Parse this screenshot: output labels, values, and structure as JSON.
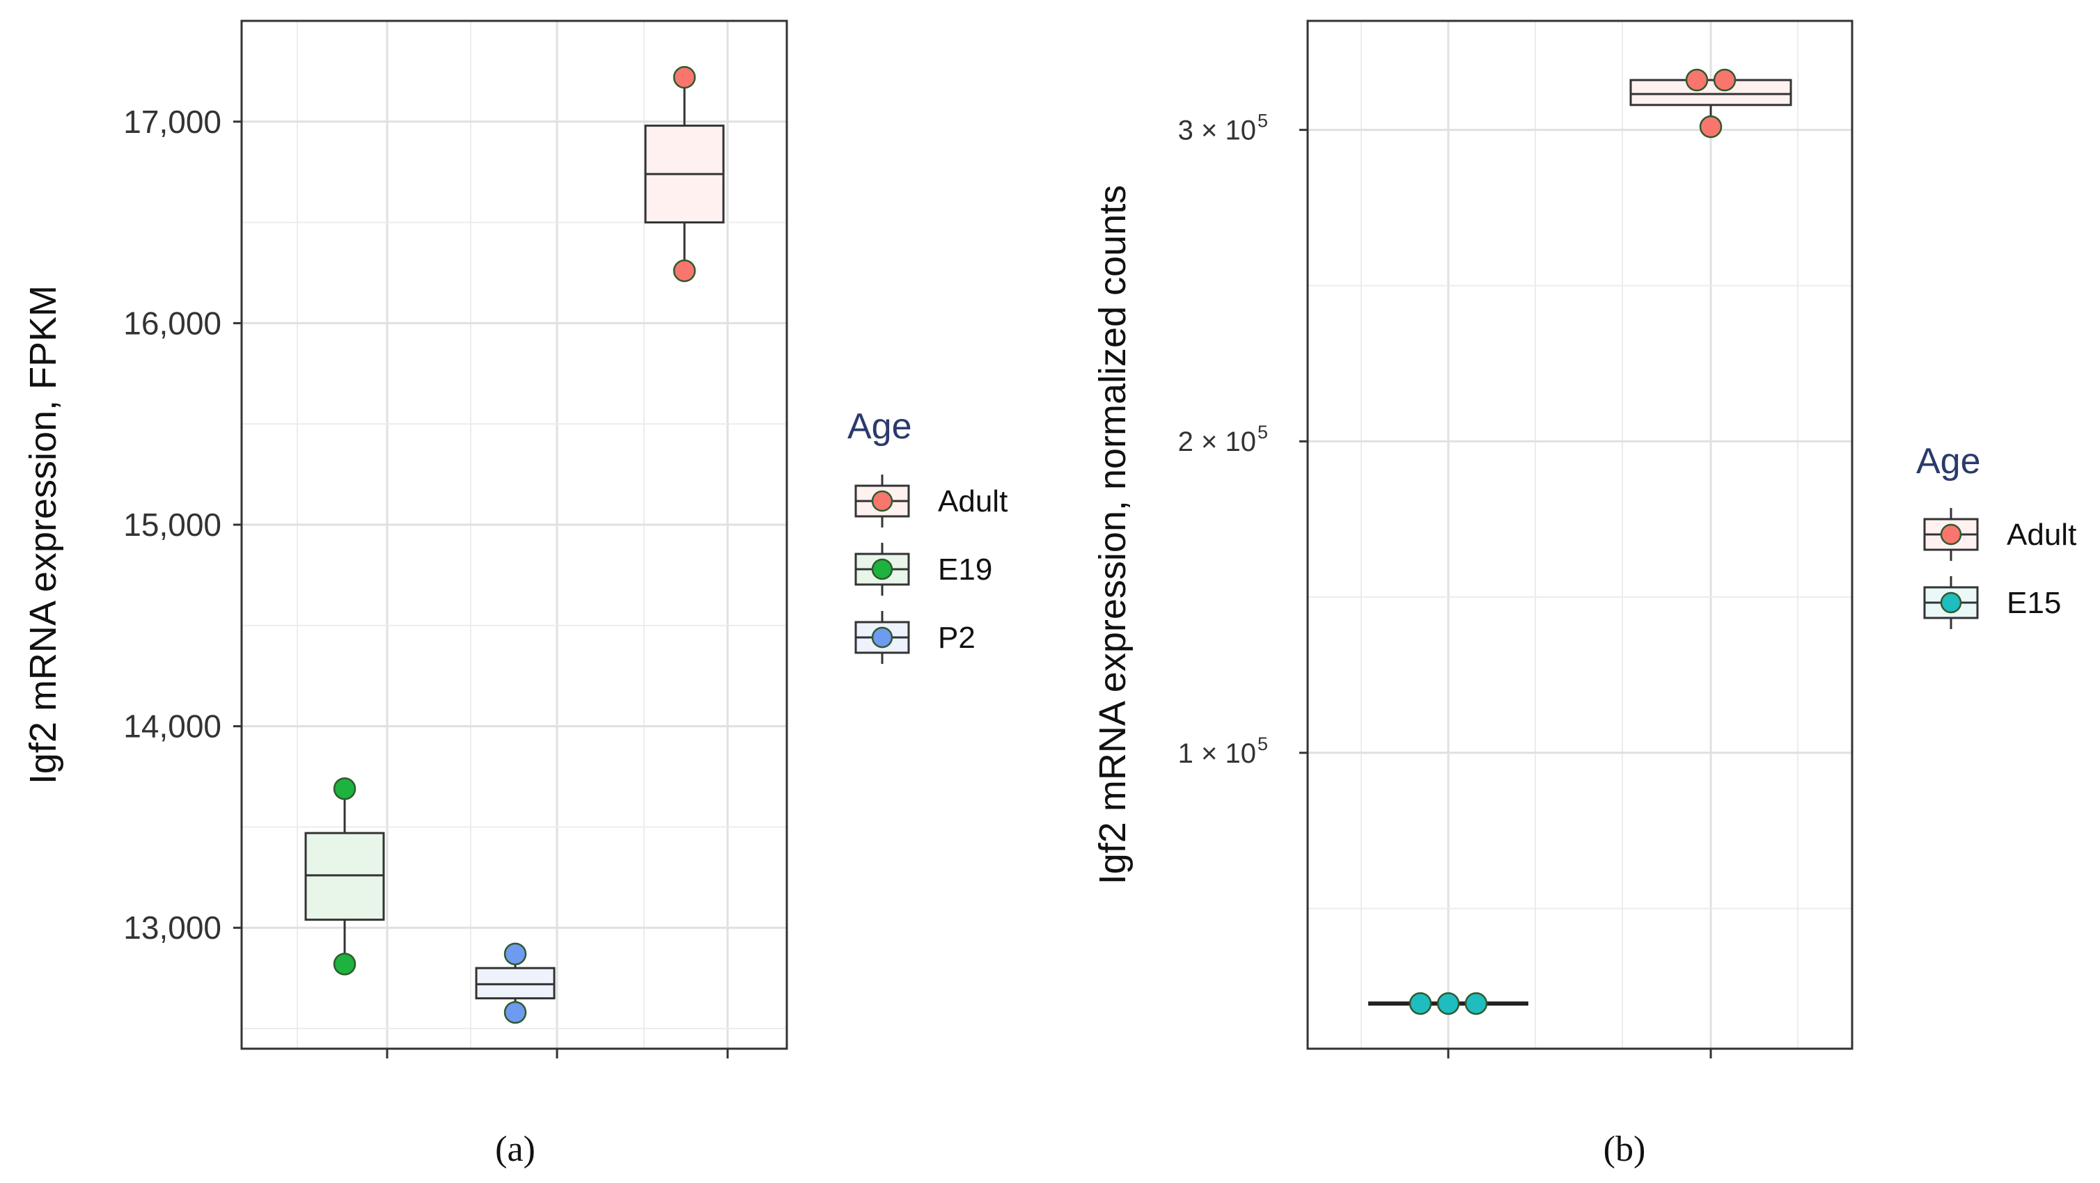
{
  "chart_data": [
    {
      "panel_label": "(a)",
      "type": "box",
      "ylabel": "Igf2 mRNA expression, FPKM",
      "ylim": [
        12400,
        17500
      ],
      "yticks": [
        13000,
        14000,
        15000,
        16000,
        17000
      ],
      "ytick_labels": [
        "13,000",
        "14,000",
        "15,000",
        "16,000",
        "17,000"
      ],
      "categories": [
        "E19",
        "P2",
        "Adult"
      ],
      "boxes": [
        {
          "group": "E19",
          "min": 12820,
          "q1": 13040,
          "median": 13260,
          "q3": 13470,
          "max": 13690,
          "points": [
            13690,
            12820
          ]
        },
        {
          "group": "P2",
          "min": 12580,
          "q1": 12650,
          "median": 12720,
          "q3": 12800,
          "max": 12870,
          "points": [
            12870,
            12580
          ]
        },
        {
          "group": "Adult",
          "min": 16260,
          "q1": 16500,
          "median": 16740,
          "q3": 16980,
          "max": 17220,
          "points": [
            17220,
            16260
          ]
        }
      ],
      "legend": {
        "title": "Age",
        "entries": [
          {
            "label": "Adult",
            "color": "#F8766D",
            "fill": "#FFF1F0"
          },
          {
            "label": "E19",
            "color": "#1DB33E",
            "fill": "#E8F6EA"
          },
          {
            "label": "P2",
            "color": "#6E9AEF",
            "fill": "#EDF2FC"
          }
        ]
      }
    },
    {
      "panel_label": "(b)",
      "type": "box",
      "ylabel": "Igf2 mRNA expression, normalized counts",
      "ylim": [
        5000,
        335000
      ],
      "yticks": [
        100000,
        200000,
        300000
      ],
      "ytick_labels": [
        "1 × 10",
        "2 × 10",
        "3 × 10"
      ],
      "ytick_exponent": "5",
      "categories": [
        "E15",
        "Adult"
      ],
      "boxes": [
        {
          "group": "E15",
          "min": 19500,
          "q1": 19500,
          "median": 19500,
          "q3": 19500,
          "max": 19500,
          "points": [
            19500,
            19500,
            19500
          ]
        },
        {
          "group": "Adult",
          "min": 301000,
          "q1": 308000,
          "median": 311500,
          "q3": 316000,
          "max": 316000,
          "points": [
            316000,
            316000,
            301000
          ]
        }
      ],
      "legend": {
        "title": "Age",
        "entries": [
          {
            "label": "Adult",
            "color": "#F8766D",
            "fill": "#FFF1F0"
          },
          {
            "label": "E15",
            "color": "#1FBCC0",
            "fill": "#EAF8F8"
          }
        ]
      }
    }
  ]
}
